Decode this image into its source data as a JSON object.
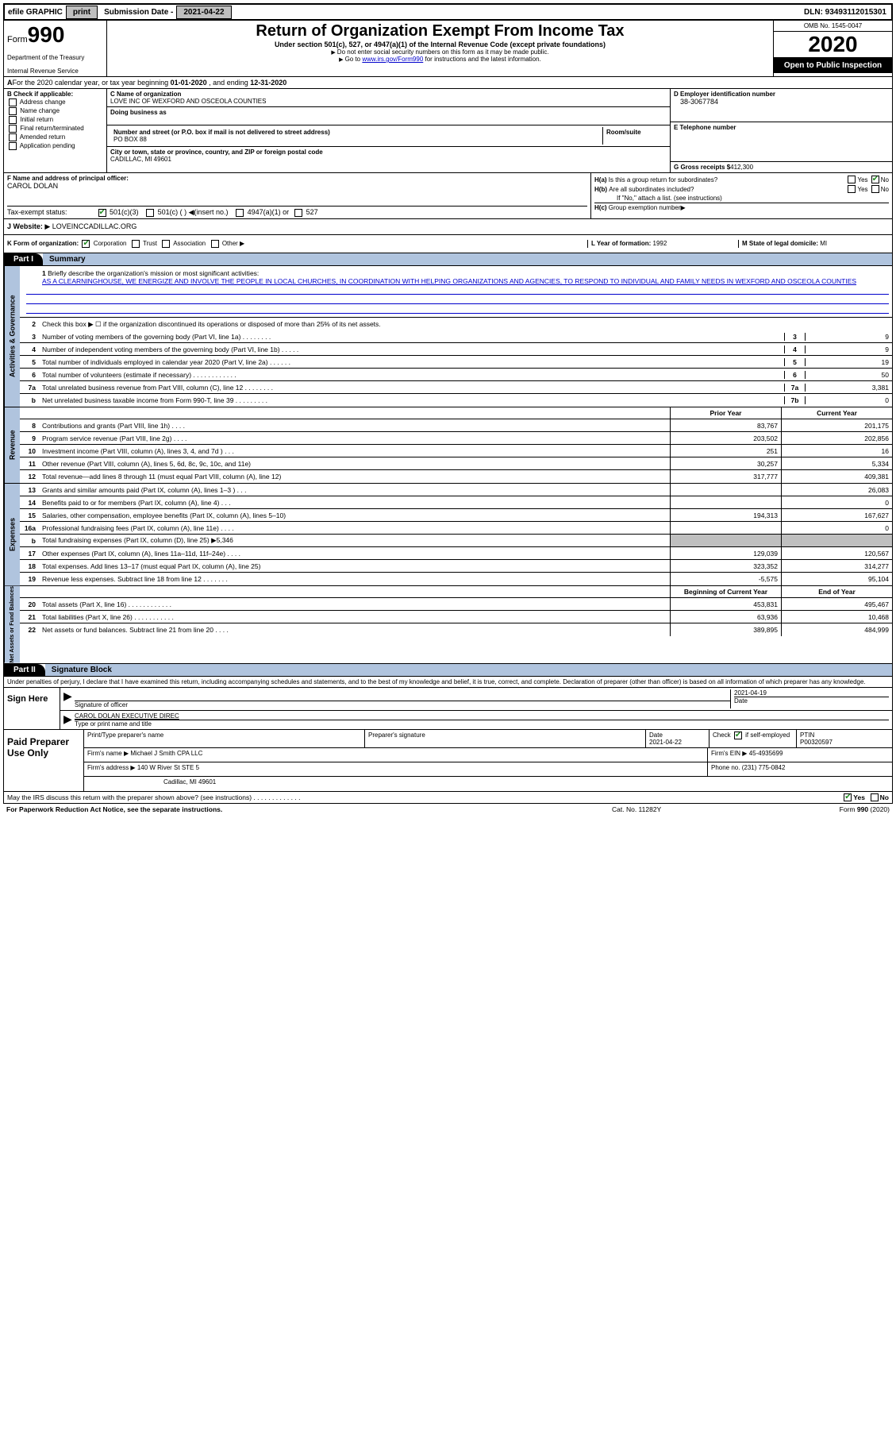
{
  "topbar": {
    "efile": "efile GRAPHIC",
    "print": "print",
    "submission_label": "Submission Date -",
    "submission_date": "2021-04-22",
    "dln": "DLN: 93493112015301"
  },
  "header": {
    "form_label": "Form",
    "form_number": "990",
    "dept": "Department of the Treasury",
    "irs": "Internal Revenue Service",
    "title": "Return of Organization Exempt From Income Tax",
    "subtitle": "Under section 501(c), 527, or 4947(a)(1) of the Internal Revenue Code (except private foundations)",
    "note1": "Do not enter social security numbers on this form as it may be made public.",
    "note2_pre": "Go to ",
    "note2_link": "www.irs.gov/Form990",
    "note2_post": " for instructions and the latest information.",
    "omb": "OMB No. 1545-0047",
    "year": "2020",
    "open_public": "Open to Public Inspection"
  },
  "calendar": {
    "label_a": "For the 2020 calendar year, or tax year beginning ",
    "begin": "01-01-2020",
    "mid": " , and ending ",
    "end": "12-31-2020"
  },
  "section_b": {
    "label": "B Check if applicable:",
    "items": [
      "Address change",
      "Name change",
      "Initial return",
      "Final return/terminated",
      "Amended return",
      "Application pending"
    ]
  },
  "section_c": {
    "name_label": "C Name of organization",
    "name": "LOVE INC OF WEXFORD AND OSCEOLA COUNTIES",
    "dba_label": "Doing business as",
    "street_label": "Number and street (or P.O. box if mail is not delivered to street address)",
    "street": "PO BOX 88",
    "room_label": "Room/suite",
    "city_label": "City or town, state or province, country, and ZIP or foreign postal code",
    "city": "CADILLAC, MI   49601"
  },
  "section_d": {
    "ein_label": "D Employer identification number",
    "ein": "38-3067784",
    "phone_label": "E Telephone number",
    "gross_label": "G Gross receipts $",
    "gross": "412,300"
  },
  "section_f": {
    "label": "F  Name and address of principal officer:",
    "name": "CAROL DOLAN"
  },
  "section_h": {
    "ha_label": "Is this a group return for subordinates?",
    "ha_prefix": "H(a)",
    "hb_label": "Are all subordinates included?",
    "hb_prefix": "H(b)",
    "hb_note": "If \"No,\" attach a list. (see instructions)",
    "hc_label": "Group exemption number",
    "hc_prefix": "H(c)",
    "yes": "Yes",
    "no": "No"
  },
  "tax_exempt": {
    "i_label": "Tax-exempt status:",
    "opt1": "501(c)(3)",
    "opt2": "501(c) (    )",
    "opt2_note": "(insert no.)",
    "opt3": "4947(a)(1) or",
    "opt4": "527"
  },
  "section_j": {
    "label": "J   Website:",
    "value": "LOVEINCCADILLAC.ORG"
  },
  "section_k": {
    "label": "K Form of organization:",
    "opts": [
      "Corporation",
      "Trust",
      "Association",
      "Other"
    ],
    "l_label": "L Year of formation:",
    "l_val": "1992",
    "m_label": "M State of legal domicile:",
    "m_val": "MI"
  },
  "part1": {
    "header": "Part I",
    "title": "Summary",
    "line1_label": "Briefly describe the organization's mission or most significant activities:",
    "mission": "AS A CLEARNINGHOUSE, WE ENERGIZE AND INVOLVE THE PEOPLE IN LOCAL CHURCHES, IN COORDINATION WITH HELPING ORGANIZATIONS AND AGENCIES, TO RESPOND TO INDIVIDUAL AND FAMILY NEEDS IN WEXFORD AND OSCEOLA COUNTIES",
    "line2": "Check this box ▶ ☐ if the organization discontinued its operations or disposed of more than 25% of its net assets.",
    "governance_lines": [
      {
        "n": "3",
        "d": "Number of voting members of the governing body (Part VI, line 1a)  .    .    .    .    .    .    .    .",
        "box": "3",
        "v": "9"
      },
      {
        "n": "4",
        "d": "Number of independent voting members of the governing body (Part VI, line 1b)  .    .    .    .    .",
        "box": "4",
        "v": "9"
      },
      {
        "n": "5",
        "d": "Total number of individuals employed in calendar year 2020 (Part V, line 2a)  .    .    .    .    .    .",
        "box": "5",
        "v": "19"
      },
      {
        "n": "6",
        "d": "Total number of volunteers (estimate if necessary)  .    .    .    .    .    .    .    .    .    .    .    .",
        "box": "6",
        "v": "50"
      },
      {
        "n": "7a",
        "d": "Total unrelated business revenue from Part VIII, column (C), line 12  .    .    .    .    .    .    .    .",
        "box": "7a",
        "v": "3,381"
      },
      {
        "n": "b",
        "d": "Net unrelated business taxable income from Form 990-T, line 39  .    .    .    .    .    .    .    .    .",
        "box": "7b",
        "v": "0"
      }
    ],
    "prior_year": "Prior Year",
    "current_year": "Current Year",
    "revenue_lines": [
      {
        "n": "8",
        "d": "Contributions and grants (Part VIII, line 1h)  .    .    .    .",
        "py": "83,767",
        "cy": "201,175"
      },
      {
        "n": "9",
        "d": "Program service revenue (Part VIII, line 2g)  .    .    .    .",
        "py": "203,502",
        "cy": "202,856"
      },
      {
        "n": "10",
        "d": "Investment income (Part VIII, column (A), lines 3, 4, and 7d )  .    .    .",
        "py": "251",
        "cy": "16"
      },
      {
        "n": "11",
        "d": "Other revenue (Part VIII, column (A), lines 5, 6d, 8c, 9c, 10c, and 11e)",
        "py": "30,257",
        "cy": "5,334"
      },
      {
        "n": "12",
        "d": "Total revenue—add lines 8 through 11 (must equal Part VIII, column (A), line 12)",
        "py": "317,777",
        "cy": "409,381"
      }
    ],
    "expense_lines": [
      {
        "n": "13",
        "d": "Grants and similar amounts paid (Part IX, column (A), lines 1–3 )  .    .    .",
        "py": "",
        "cy": "26,083"
      },
      {
        "n": "14",
        "d": "Benefits paid to or for members (Part IX, column (A), line 4)  .    .    .",
        "py": "",
        "cy": "0"
      },
      {
        "n": "15",
        "d": "Salaries, other compensation, employee benefits (Part IX, column (A), lines 5–10)",
        "py": "194,313",
        "cy": "167,627"
      },
      {
        "n": "16a",
        "d": "Professional fundraising fees (Part IX, column (A), line 11e)  .    .    .    .",
        "py": "",
        "cy": "0"
      },
      {
        "n": "b",
        "d": "Total fundraising expenses (Part IX, column (D), line 25) ▶5,346",
        "py": "shaded",
        "cy": "shaded"
      },
      {
        "n": "17",
        "d": "Other expenses (Part IX, column (A), lines 11a–11d, 11f–24e)  .    .    .    .",
        "py": "129,039",
        "cy": "120,567"
      },
      {
        "n": "18",
        "d": "Total expenses. Add lines 13–17 (must equal Part IX, column (A), line 25)",
        "py": "323,352",
        "cy": "314,277"
      },
      {
        "n": "19",
        "d": "Revenue less expenses. Subtract line 18 from line 12  .    .    .    .    .    .    .",
        "py": "-5,575",
        "cy": "95,104"
      }
    ],
    "begin_year": "Beginning of Current Year",
    "end_year": "End of Year",
    "net_lines": [
      {
        "n": "20",
        "d": "Total assets (Part X, line 16)  .    .    .    .    .    .    .    .    .    .    .    .",
        "py": "453,831",
        "cy": "495,467"
      },
      {
        "n": "21",
        "d": "Total liabilities (Part X, line 26)  .    .    .    .    .    .    .    .    .    .    .",
        "py": "63,936",
        "cy": "10,468"
      },
      {
        "n": "22",
        "d": "Net assets or fund balances. Subtract line 21 from line 20  .    .    .    .",
        "py": "389,895",
        "cy": "484,999"
      }
    ]
  },
  "vtabs": {
    "governance": "Activities & Governance",
    "revenue": "Revenue",
    "expenses": "Expenses",
    "net": "Net Assets or Fund Balances"
  },
  "part2": {
    "header": "Part II",
    "title": "Signature Block",
    "penalty": "Under penalties of perjury, I declare that I have examined this return, including accompanying schedules and statements, and to the best of my knowledge and belief, it is true, correct, and complete. Declaration of preparer (other than officer) is based on all information of which preparer has any knowledge."
  },
  "sign": {
    "label": "Sign Here",
    "sig_label": "Signature of officer",
    "date_label": "Date",
    "date": "2021-04-19",
    "name": "CAROL DOLAN  EXECUTIVE DIREC",
    "name_label": "Type or print name and title"
  },
  "preparer": {
    "label": "Paid Preparer Use Only",
    "print_label": "Print/Type preparer's name",
    "sig_label": "Preparer's signature",
    "date_label": "Date",
    "date": "2021-04-22",
    "check_label": "Check",
    "self_emp": "if self-employed",
    "ptin_label": "PTIN",
    "ptin": "P00320597",
    "firm_name_label": "Firm's name    ▶",
    "firm_name": "Michael J Smith CPA LLC",
    "firm_ein_label": "Firm's EIN ▶",
    "firm_ein": "45-4935699",
    "firm_addr_label": "Firm's address ▶",
    "firm_addr1": "140 W River St STE 5",
    "firm_addr2": "Cadillac, MI   49601",
    "phone_label": "Phone no.",
    "phone": "(231) 775-0842"
  },
  "discuss": {
    "text": "May the IRS discuss this return with the preparer shown above? (see instructions)  .    .    .    .    .    .    .    .    .    .    .    .    .",
    "yes": "Yes",
    "no": "No"
  },
  "footer": {
    "left": "For Paperwork Reduction Act Notice, see the separate instructions.",
    "mid": "Cat. No. 11282Y",
    "right": "Form 990 (2020)"
  },
  "colors": {
    "grey": "#bfbfbf",
    "blue_bg": "#b0c4de",
    "link": "#0000cc",
    "check_green": "#228b22"
  }
}
